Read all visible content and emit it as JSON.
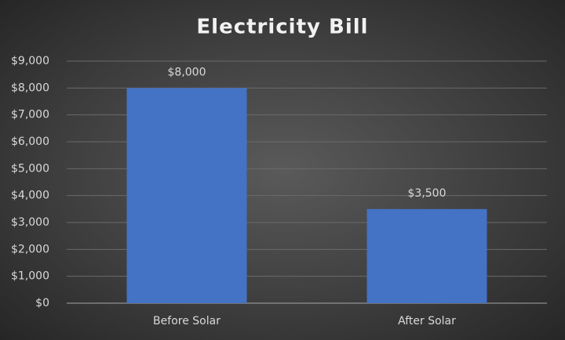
{
  "chart_data": {
    "type": "bar",
    "title": "Electricity Bill",
    "categories": [
      "Before Solar",
      "After Solar"
    ],
    "values": [
      8000,
      3500
    ],
    "value_labels": [
      "$8,000",
      "$3,500"
    ],
    "color": "#4472c4",
    "ylim": [
      0,
      9000
    ],
    "yticks": [
      {
        "value": 0,
        "label": "$0"
      },
      {
        "value": 1000,
        "label": "$1,000"
      },
      {
        "value": 2000,
        "label": "$2,000"
      },
      {
        "value": 3000,
        "label": "$3,000"
      },
      {
        "value": 4000,
        "label": "$4,000"
      },
      {
        "value": 5000,
        "label": "$5,000"
      },
      {
        "value": 6000,
        "label": "$6,000"
      },
      {
        "value": 7000,
        "label": "$7,000"
      },
      {
        "value": 8000,
        "label": "$8,000"
      },
      {
        "value": 9000,
        "label": "$9,000"
      }
    ],
    "grid": true
  }
}
